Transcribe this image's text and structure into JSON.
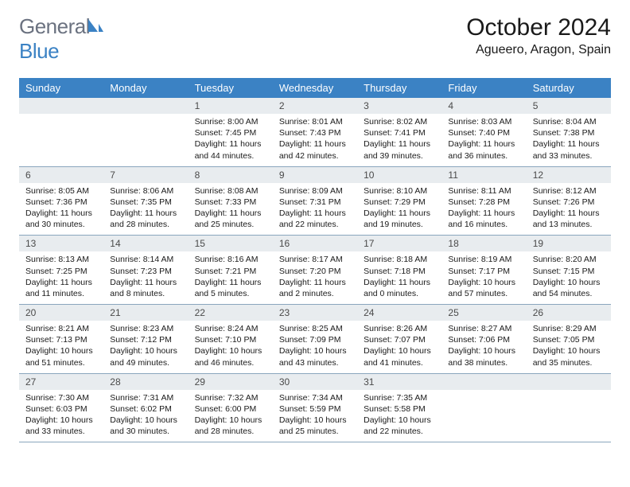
{
  "branding": {
    "logo_word1": "General",
    "logo_word2": "Blue",
    "logo_color_gray": "#6b7280",
    "logo_color_blue": "#3b82c4"
  },
  "header": {
    "month_title": "October 2024",
    "location": "Agueero, Aragon, Spain"
  },
  "colors": {
    "header_bg": "#3b82c4",
    "header_text": "#ffffff",
    "daynum_bg": "#e8ecef",
    "border": "#8aa6bd",
    "body_text": "#1a1a1a"
  },
  "weekdays": [
    "Sunday",
    "Monday",
    "Tuesday",
    "Wednesday",
    "Thursday",
    "Friday",
    "Saturday"
  ],
  "weeks": [
    [
      {
        "day": "",
        "sunrise": "",
        "sunset": "",
        "daylight": ""
      },
      {
        "day": "",
        "sunrise": "",
        "sunset": "",
        "daylight": ""
      },
      {
        "day": "1",
        "sunrise": "Sunrise: 8:00 AM",
        "sunset": "Sunset: 7:45 PM",
        "daylight": "Daylight: 11 hours and 44 minutes."
      },
      {
        "day": "2",
        "sunrise": "Sunrise: 8:01 AM",
        "sunset": "Sunset: 7:43 PM",
        "daylight": "Daylight: 11 hours and 42 minutes."
      },
      {
        "day": "3",
        "sunrise": "Sunrise: 8:02 AM",
        "sunset": "Sunset: 7:41 PM",
        "daylight": "Daylight: 11 hours and 39 minutes."
      },
      {
        "day": "4",
        "sunrise": "Sunrise: 8:03 AM",
        "sunset": "Sunset: 7:40 PM",
        "daylight": "Daylight: 11 hours and 36 minutes."
      },
      {
        "day": "5",
        "sunrise": "Sunrise: 8:04 AM",
        "sunset": "Sunset: 7:38 PM",
        "daylight": "Daylight: 11 hours and 33 minutes."
      }
    ],
    [
      {
        "day": "6",
        "sunrise": "Sunrise: 8:05 AM",
        "sunset": "Sunset: 7:36 PM",
        "daylight": "Daylight: 11 hours and 30 minutes."
      },
      {
        "day": "7",
        "sunrise": "Sunrise: 8:06 AM",
        "sunset": "Sunset: 7:35 PM",
        "daylight": "Daylight: 11 hours and 28 minutes."
      },
      {
        "day": "8",
        "sunrise": "Sunrise: 8:08 AM",
        "sunset": "Sunset: 7:33 PM",
        "daylight": "Daylight: 11 hours and 25 minutes."
      },
      {
        "day": "9",
        "sunrise": "Sunrise: 8:09 AM",
        "sunset": "Sunset: 7:31 PM",
        "daylight": "Daylight: 11 hours and 22 minutes."
      },
      {
        "day": "10",
        "sunrise": "Sunrise: 8:10 AM",
        "sunset": "Sunset: 7:29 PM",
        "daylight": "Daylight: 11 hours and 19 minutes."
      },
      {
        "day": "11",
        "sunrise": "Sunrise: 8:11 AM",
        "sunset": "Sunset: 7:28 PM",
        "daylight": "Daylight: 11 hours and 16 minutes."
      },
      {
        "day": "12",
        "sunrise": "Sunrise: 8:12 AM",
        "sunset": "Sunset: 7:26 PM",
        "daylight": "Daylight: 11 hours and 13 minutes."
      }
    ],
    [
      {
        "day": "13",
        "sunrise": "Sunrise: 8:13 AM",
        "sunset": "Sunset: 7:25 PM",
        "daylight": "Daylight: 11 hours and 11 minutes."
      },
      {
        "day": "14",
        "sunrise": "Sunrise: 8:14 AM",
        "sunset": "Sunset: 7:23 PM",
        "daylight": "Daylight: 11 hours and 8 minutes."
      },
      {
        "day": "15",
        "sunrise": "Sunrise: 8:16 AM",
        "sunset": "Sunset: 7:21 PM",
        "daylight": "Daylight: 11 hours and 5 minutes."
      },
      {
        "day": "16",
        "sunrise": "Sunrise: 8:17 AM",
        "sunset": "Sunset: 7:20 PM",
        "daylight": "Daylight: 11 hours and 2 minutes."
      },
      {
        "day": "17",
        "sunrise": "Sunrise: 8:18 AM",
        "sunset": "Sunset: 7:18 PM",
        "daylight": "Daylight: 11 hours and 0 minutes."
      },
      {
        "day": "18",
        "sunrise": "Sunrise: 8:19 AM",
        "sunset": "Sunset: 7:17 PM",
        "daylight": "Daylight: 10 hours and 57 minutes."
      },
      {
        "day": "19",
        "sunrise": "Sunrise: 8:20 AM",
        "sunset": "Sunset: 7:15 PM",
        "daylight": "Daylight: 10 hours and 54 minutes."
      }
    ],
    [
      {
        "day": "20",
        "sunrise": "Sunrise: 8:21 AM",
        "sunset": "Sunset: 7:13 PM",
        "daylight": "Daylight: 10 hours and 51 minutes."
      },
      {
        "day": "21",
        "sunrise": "Sunrise: 8:23 AM",
        "sunset": "Sunset: 7:12 PM",
        "daylight": "Daylight: 10 hours and 49 minutes."
      },
      {
        "day": "22",
        "sunrise": "Sunrise: 8:24 AM",
        "sunset": "Sunset: 7:10 PM",
        "daylight": "Daylight: 10 hours and 46 minutes."
      },
      {
        "day": "23",
        "sunrise": "Sunrise: 8:25 AM",
        "sunset": "Sunset: 7:09 PM",
        "daylight": "Daylight: 10 hours and 43 minutes."
      },
      {
        "day": "24",
        "sunrise": "Sunrise: 8:26 AM",
        "sunset": "Sunset: 7:07 PM",
        "daylight": "Daylight: 10 hours and 41 minutes."
      },
      {
        "day": "25",
        "sunrise": "Sunrise: 8:27 AM",
        "sunset": "Sunset: 7:06 PM",
        "daylight": "Daylight: 10 hours and 38 minutes."
      },
      {
        "day": "26",
        "sunrise": "Sunrise: 8:29 AM",
        "sunset": "Sunset: 7:05 PM",
        "daylight": "Daylight: 10 hours and 35 minutes."
      }
    ],
    [
      {
        "day": "27",
        "sunrise": "Sunrise: 7:30 AM",
        "sunset": "Sunset: 6:03 PM",
        "daylight": "Daylight: 10 hours and 33 minutes."
      },
      {
        "day": "28",
        "sunrise": "Sunrise: 7:31 AM",
        "sunset": "Sunset: 6:02 PM",
        "daylight": "Daylight: 10 hours and 30 minutes."
      },
      {
        "day": "29",
        "sunrise": "Sunrise: 7:32 AM",
        "sunset": "Sunset: 6:00 PM",
        "daylight": "Daylight: 10 hours and 28 minutes."
      },
      {
        "day": "30",
        "sunrise": "Sunrise: 7:34 AM",
        "sunset": "Sunset: 5:59 PM",
        "daylight": "Daylight: 10 hours and 25 minutes."
      },
      {
        "day": "31",
        "sunrise": "Sunrise: 7:35 AM",
        "sunset": "Sunset: 5:58 PM",
        "daylight": "Daylight: 10 hours and 22 minutes."
      },
      {
        "day": "",
        "sunrise": "",
        "sunset": "",
        "daylight": ""
      },
      {
        "day": "",
        "sunrise": "",
        "sunset": "",
        "daylight": ""
      }
    ]
  ]
}
